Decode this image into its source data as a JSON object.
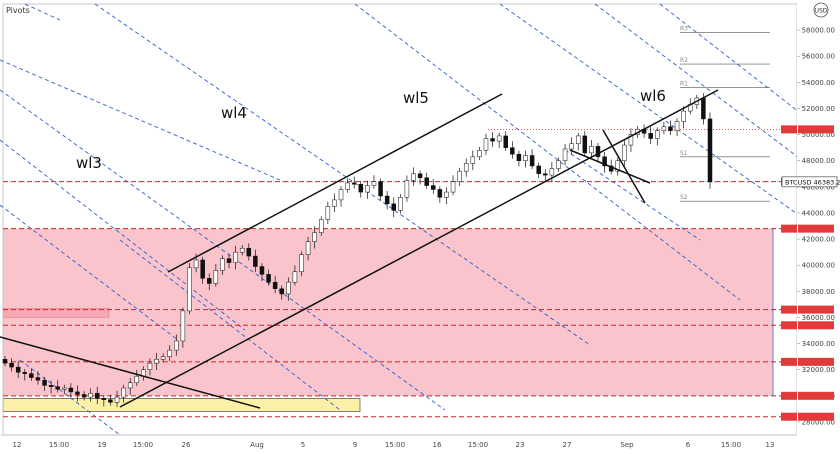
{
  "indicator_label": "Pivots",
  "currency": "USD",
  "chart_data": {
    "type": "candlestick",
    "ylim": [
      27000,
      60000
    ],
    "y_ticks": [
      28000,
      30000,
      32000,
      34000,
      36000,
      38000,
      40000,
      42000,
      44000,
      46000,
      48000,
      50000,
      52000,
      54000,
      56000,
      58000
    ],
    "x_ticks": [
      "12",
      "15:00",
      "19",
      "15:00",
      "26",
      "Aug",
      "5",
      "9",
      "15:00",
      "16",
      "15:00",
      "23",
      "27",
      "Sep",
      "6",
      "15:00",
      "13"
    ],
    "price": {
      "label": "BTCUSD",
      "value": "46383.26",
      "price_value": 46383
    },
    "wave_labels": [
      "wl3",
      "wl4",
      "wl5",
      "wl6"
    ],
    "pivots": [
      {
        "name": "R3",
        "value": 57800
      },
      {
        "name": "R2",
        "value": 55400
      },
      {
        "name": "R1",
        "value": 53600
      },
      {
        "name": "S1",
        "value": 48300
      },
      {
        "name": "S2",
        "value": 44900
      }
    ],
    "horizontal_levels": [
      50400,
      46400,
      42800,
      36600,
      35400,
      32600,
      30000,
      28400
    ],
    "zones": [
      {
        "name": "resistance-zone",
        "from": 42800,
        "to": 30000,
        "color": "#f9c4cc"
      },
      {
        "name": "support-zone",
        "from": 28800,
        "to": 29800,
        "color": "#fbf0a8"
      }
    ],
    "candles_close": [
      32500,
      32200,
      31800,
      31700,
      31400,
      31200,
      30800,
      30700,
      30500,
      30600,
      30300,
      30100,
      29900,
      30200,
      29800,
      29700,
      29500,
      29900,
      30600,
      31000,
      31500,
      32000,
      32500,
      32800,
      33000,
      33500,
      34200,
      36500,
      39800,
      40400,
      39000,
      38600,
      39600,
      40500,
      40200,
      41000,
      41300,
      40700,
      39900,
      39300,
      38700,
      38200,
      37800,
      38700,
      39500,
      40800,
      41800,
      42500,
      43500,
      44500,
      45000,
      45800,
      46300,
      46200,
      45600,
      46100,
      46400,
      45300,
      44700,
      44200,
      45200,
      46500,
      47000,
      46700,
      46100,
      45800,
      45200,
      45600,
      46400,
      47200,
      47800,
      48300,
      48800,
      49700,
      49500,
      49900,
      49000,
      48500,
      48000,
      48400,
      47600,
      47000,
      46900,
      47400,
      48000,
      48900,
      49300,
      49900,
      48600,
      49100,
      48300,
      47600,
      47200,
      48000,
      49200,
      50000,
      50400,
      50100,
      49700,
      50300,
      50600,
      50300,
      51000,
      51800,
      52300,
      52800,
      51200,
      46383
    ]
  }
}
